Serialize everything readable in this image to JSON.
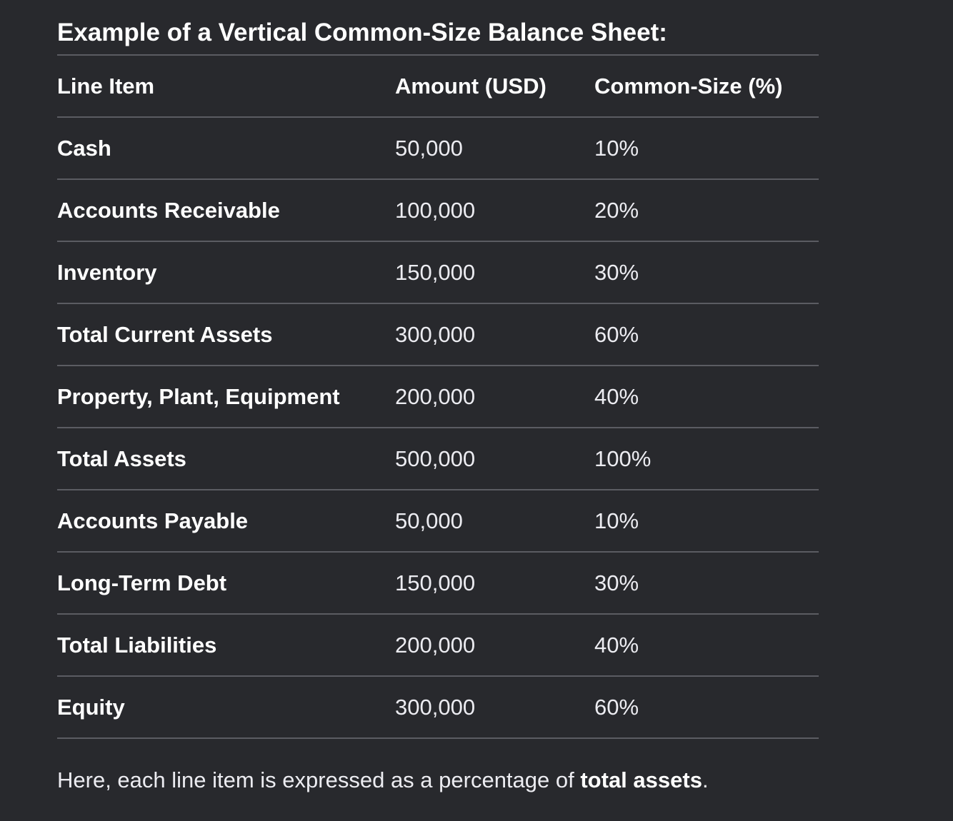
{
  "heading": "Example of a Vertical Common-Size Balance Sheet:",
  "table": {
    "headers": [
      "Line Item",
      "Amount (USD)",
      "Common-Size (%)"
    ],
    "rows": [
      {
        "item": "Cash",
        "amount": "50,000",
        "percent": "10%"
      },
      {
        "item": "Accounts Receivable",
        "amount": "100,000",
        "percent": "20%"
      },
      {
        "item": "Inventory",
        "amount": "150,000",
        "percent": "30%"
      },
      {
        "item": "Total Current Assets",
        "amount": "300,000",
        "percent": "60%"
      },
      {
        "item": "Property, Plant, Equipment",
        "amount": "200,000",
        "percent": "40%"
      },
      {
        "item": "Total Assets",
        "amount": "500,000",
        "percent": "100%"
      },
      {
        "item": "Accounts Payable",
        "amount": "50,000",
        "percent": "10%"
      },
      {
        "item": "Long-Term Debt",
        "amount": "150,000",
        "percent": "30%"
      },
      {
        "item": "Total Liabilities",
        "amount": "200,000",
        "percent": "40%"
      },
      {
        "item": "Equity",
        "amount": "300,000",
        "percent": "60%"
      }
    ]
  },
  "note": {
    "prefix": "Here, each line item is expressed as a percentage of ",
    "bold": "total assets",
    "suffix": "."
  },
  "colors": {
    "background": "#28292d",
    "text": "#ececf1",
    "rule": "#5b5c62"
  }
}
